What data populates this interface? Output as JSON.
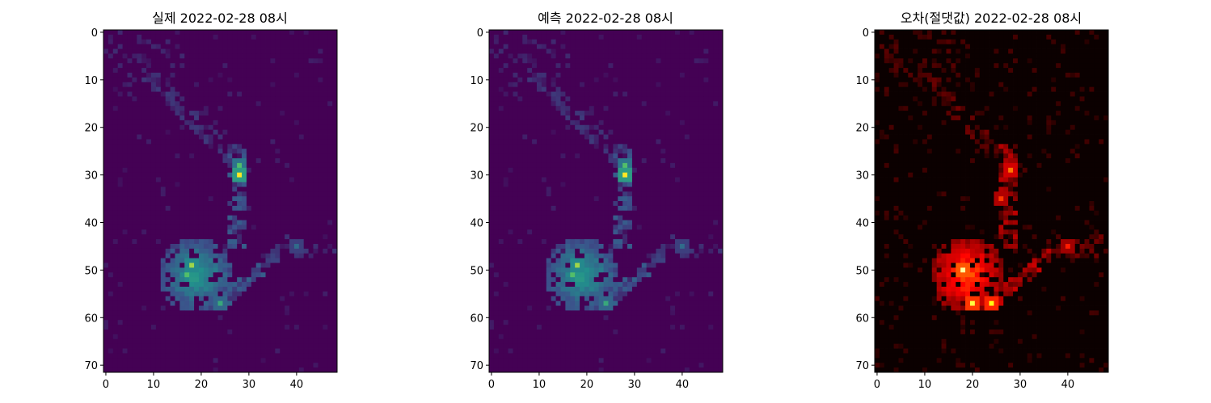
{
  "chart_data": [
    {
      "type": "heatmap",
      "title": "실제 2022-02-28 08시",
      "colormap": "viridis",
      "grid_shape": [
        72,
        49
      ],
      "xlim": [
        -0.5,
        48.5
      ],
      "ylim": [
        71.5,
        -0.5
      ],
      "xticks": [
        0,
        10,
        20,
        30,
        40
      ],
      "yticks": [
        0,
        10,
        20,
        30,
        40,
        50,
        60,
        70
      ],
      "xlabel": "",
      "ylabel": "",
      "grid": false,
      "hotspots": [
        {
          "x": 28,
          "y": 30,
          "value": 1.0
        },
        {
          "x": 28,
          "y": 28,
          "value": 0.7
        },
        {
          "x": 18,
          "y": 49,
          "value": 0.85
        },
        {
          "x": 17,
          "y": 51,
          "value": 0.7
        },
        {
          "x": 24,
          "y": 57,
          "value": 0.6
        },
        {
          "x": 40,
          "y": 45,
          "value": 0.35
        }
      ]
    },
    {
      "type": "heatmap",
      "title": "예측 2022-02-28 08시",
      "colormap": "viridis",
      "grid_shape": [
        72,
        49
      ],
      "xlim": [
        -0.5,
        48.5
      ],
      "ylim": [
        71.5,
        -0.5
      ],
      "xticks": [
        0,
        10,
        20,
        30,
        40
      ],
      "yticks": [
        0,
        10,
        20,
        30,
        40,
        50,
        60,
        70
      ],
      "xlabel": "",
      "ylabel": "",
      "grid": false,
      "hotspots": [
        {
          "x": 28,
          "y": 30,
          "value": 1.0
        },
        {
          "x": 28,
          "y": 28,
          "value": 0.7
        },
        {
          "x": 18,
          "y": 49,
          "value": 0.85
        },
        {
          "x": 17,
          "y": 51,
          "value": 0.7
        },
        {
          "x": 24,
          "y": 57,
          "value": 0.6
        },
        {
          "x": 40,
          "y": 45,
          "value": 0.35
        }
      ]
    },
    {
      "type": "heatmap",
      "title": "오차(절댓값) 2022-02-28 08시",
      "colormap": "hot",
      "grid_shape": [
        72,
        49
      ],
      "xlim": [
        -0.5,
        48.5
      ],
      "ylim": [
        71.5,
        -0.5
      ],
      "xticks": [
        0,
        10,
        20,
        30,
        40
      ],
      "yticks": [
        0,
        10,
        20,
        30,
        40,
        50,
        60,
        70
      ],
      "xlabel": "",
      "ylabel": "",
      "grid": false,
      "hotspots": [
        {
          "x": 18,
          "y": 50,
          "value": 1.0
        },
        {
          "x": 20,
          "y": 57,
          "value": 0.9
        },
        {
          "x": 24,
          "y": 57,
          "value": 0.85
        },
        {
          "x": 28,
          "y": 29,
          "value": 0.6
        },
        {
          "x": 26,
          "y": 35,
          "value": 0.5
        },
        {
          "x": 40,
          "y": 45,
          "value": 0.45
        }
      ]
    }
  ]
}
